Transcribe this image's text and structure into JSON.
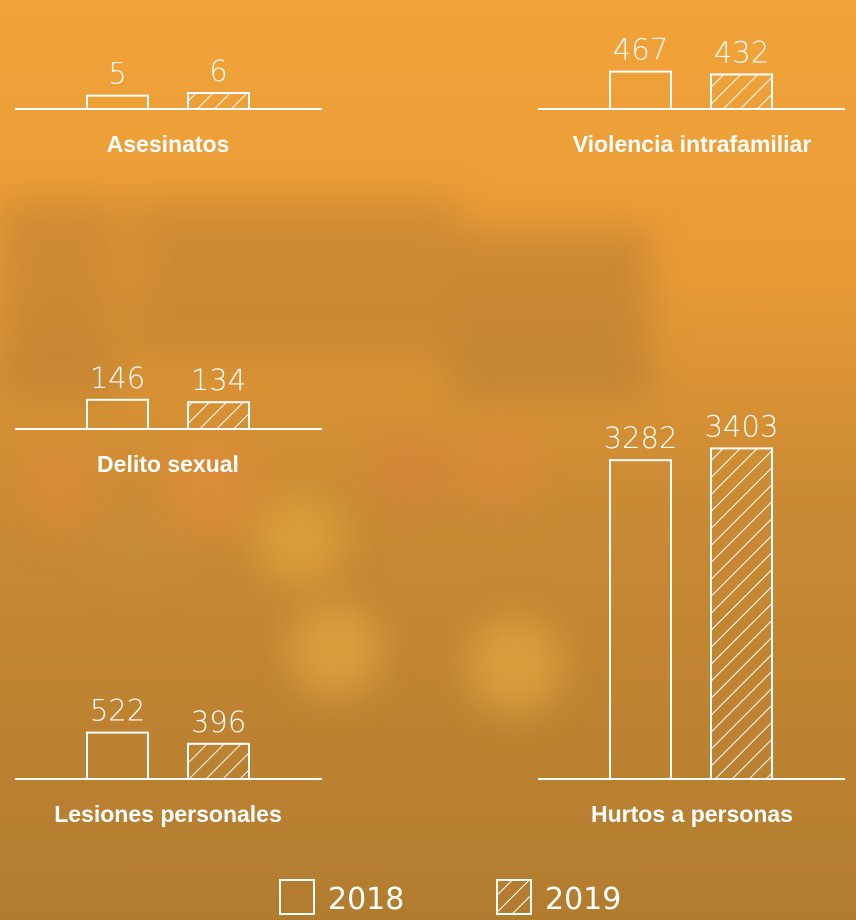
{
  "chart_data": [
    {
      "type": "bar",
      "title": "Asesinatos",
      "ylim": [
        0,
        30
      ],
      "series": [
        {
          "name": "2018",
          "color": "#ffffff",
          "hatch": false,
          "values": [
            5
          ]
        },
        {
          "name": "2019",
          "color": "#ffffff",
          "hatch": true,
          "values": [
            6
          ]
        }
      ]
    },
    {
      "type": "bar",
      "title": "Violencia intrafamiliar",
      "ylim": [
        0,
        1000
      ],
      "series": [
        {
          "name": "2018",
          "color": "#ffffff",
          "hatch": false,
          "values": [
            467
          ]
        },
        {
          "name": "2019",
          "color": "#ffffff",
          "hatch": true,
          "values": [
            432
          ]
        }
      ]
    },
    {
      "type": "bar",
      "title": "Delito sexual",
      "ylim": [
        0,
        400
      ],
      "series": [
        {
          "name": "2018",
          "color": "#ffffff",
          "hatch": false,
          "values": [
            146
          ]
        },
        {
          "name": "2019",
          "color": "#ffffff",
          "hatch": true,
          "values": [
            134
          ]
        }
      ]
    },
    {
      "type": "bar",
      "title": "Lesiones personales",
      "ylim": [
        0,
        900
      ],
      "series": [
        {
          "name": "2018",
          "color": "#ffffff",
          "hatch": false,
          "values": [
            522
          ]
        },
        {
          "name": "2019",
          "color": "#ffffff",
          "hatch": true,
          "values": [
            396
          ]
        }
      ]
    },
    {
      "type": "bar",
      "title": "Hurtos a personas",
      "ylim": [
        0,
        3500
      ],
      "series": [
        {
          "name": "2018",
          "color": "#ffffff",
          "hatch": false,
          "values": [
            3282
          ]
        },
        {
          "name": "2019",
          "color": "#ffffff",
          "hatch": true,
          "values": [
            3403
          ]
        }
      ]
    }
  ]
}
